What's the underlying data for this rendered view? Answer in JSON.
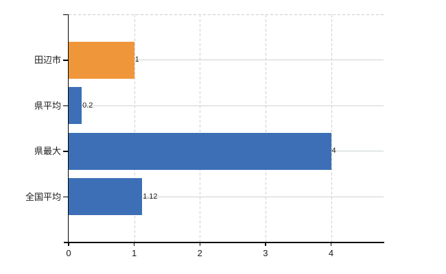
{
  "chart_data": {
    "type": "bar",
    "orientation": "horizontal",
    "title": "",
    "xlabel": "",
    "ylabel": "",
    "categories": [
      "田辺市",
      "県平均",
      "県最大",
      "全国平均"
    ],
    "values": [
      1,
      0.2,
      4,
      1.12
    ],
    "value_labels": [
      "1",
      "0.2",
      "4",
      "1.12"
    ],
    "bar_colors": [
      "#f0963a",
      "#3c6fb5",
      "#3c6fb5",
      "#3c6fb5"
    ],
    "x_ticks": [
      0,
      1,
      2,
      3,
      4
    ],
    "x_tick_labels": [
      "0",
      "1",
      "2",
      "3",
      "4"
    ],
    "xlim": [
      0,
      4.8
    ],
    "grid": true,
    "legend": null,
    "colors": {
      "background": "#ffffff",
      "axis": "#000000",
      "grid_horizontal": "#ccd5cc",
      "grid_vertical": "#cfcfcf",
      "top_border": "#c9c9c9",
      "text": "#1a1a1a"
    }
  }
}
